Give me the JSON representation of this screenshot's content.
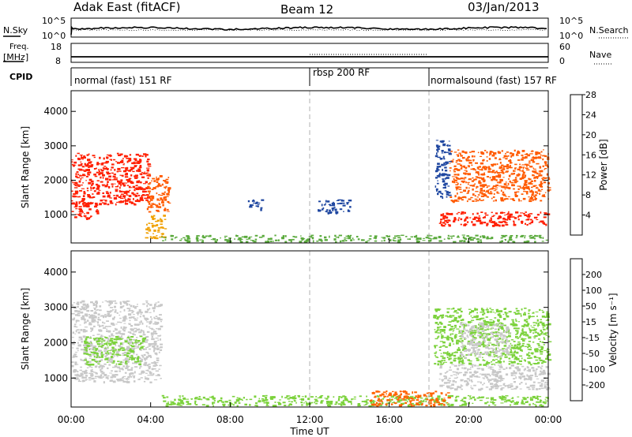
{
  "header": {
    "station": "Adak East (fitACF)",
    "beam": "Beam 12",
    "date": "03/Jan/2013"
  },
  "noise_panel": {
    "left_label": "N.Sky",
    "right_label": "N.Search",
    "left_ticks": [
      "10^5",
      "10^0"
    ],
    "right_ticks": [
      "10^5",
      "10^0"
    ]
  },
  "freq_panel": {
    "left_label_1": "Freq.",
    "left_label_2": "[MHz]",
    "right_label": "Nave",
    "left_ticks": [
      "18",
      "8"
    ],
    "right_ticks": [
      "60",
      "0"
    ]
  },
  "cpid": {
    "label": "CPID",
    "segments": [
      {
        "name": "normal (fast) 151 RF",
        "start": 0,
        "end": 12
      },
      {
        "name": "rbsp 200 RF",
        "start": 12,
        "end": 18
      },
      {
        "name": "normalsound (fast) 157 RF",
        "start": 18,
        "end": 24
      }
    ]
  },
  "power_colorbar": {
    "label": "Power [dB]",
    "ticks": [
      "4",
      "8",
      "12",
      "16",
      "20",
      "24",
      "28"
    ],
    "colors": [
      "#1e1ee6",
      "#1e46a0",
      "#2e7d5a",
      "#5aaa3c",
      "#f0a000",
      "#ff5a00",
      "#ff1e00"
    ]
  },
  "velocity_colorbar": {
    "label": "Velocity [m s⁻¹]",
    "ticks": [
      "200",
      "100",
      "50",
      "15",
      "-15",
      "-50",
      "-100",
      "-200"
    ],
    "colors": [
      "#1e3cc8",
      "#2e7d3c",
      "#4caf28",
      "#7cd23c",
      "#c8c8c8",
      "#f5a000",
      "#ff6400",
      "#ff1e00"
    ]
  },
  "chart_data": {
    "type": "heatmap",
    "x_axis": {
      "label": "Time UT",
      "ticks": [
        "00:00",
        "04:00",
        "08:00",
        "12:00",
        "16:00",
        "20:00",
        "00:00"
      ],
      "range_hours": [
        0,
        24
      ]
    },
    "y_axis": {
      "label": "Slant Range [km]",
      "ticks": [
        "1000",
        "2000",
        "3000",
        "4000"
      ],
      "range_km": [
        180,
        4600
      ]
    },
    "dashed_markers_hours": [
      12,
      18
    ],
    "power_regions": [
      {
        "t": [
          0.0,
          3.9
        ],
        "r": [
          1300,
          2800
        ],
        "color": "#ff1e00"
      },
      {
        "t": [
          0.0,
          1.3
        ],
        "r": [
          900,
          1400
        ],
        "color": "#ff1e00"
      },
      {
        "t": [
          3.8,
          4.9
        ],
        "r": [
          1100,
          2200
        ],
        "color": "#ff5a00"
      },
      {
        "t": [
          3.7,
          4.7
        ],
        "r": [
          300,
          1000
        ],
        "color": "#f0a000"
      },
      {
        "t": [
          4.5,
          24.0
        ],
        "r": [
          230,
          420
        ],
        "color": "#5aaa3c"
      },
      {
        "t": [
          8.8,
          9.6
        ],
        "r": [
          1150,
          1450
        ],
        "color": "#1e46a0"
      },
      {
        "t": [
          12.4,
          14.0
        ],
        "r": [
          1050,
          1450
        ],
        "color": "#1e46a0"
      },
      {
        "t": [
          18.5,
          24.0
        ],
        "r": [
          700,
          1100
        ],
        "color": "#ff1e00"
      },
      {
        "t": [
          19.0,
          24.0
        ],
        "r": [
          1400,
          2900
        ],
        "color": "#ff5a00"
      },
      {
        "t": [
          18.3,
          19.0
        ],
        "r": [
          1500,
          3200
        ],
        "color": "#1e46a0"
      }
    ],
    "velocity_regions": [
      {
        "t": [
          0.0,
          4.5
        ],
        "r": [
          900,
          3200
        ],
        "color": "#c8c8c8"
      },
      {
        "t": [
          0.6,
          3.6
        ],
        "r": [
          1400,
          2200
        ],
        "color": "#7cd23c"
      },
      {
        "t": [
          4.5,
          24.0
        ],
        "r": [
          230,
          520
        ],
        "color": "#7cd23c"
      },
      {
        "t": [
          15.0,
          19.0
        ],
        "r": [
          230,
          650
        ],
        "color": "#ff6400"
      },
      {
        "t": [
          18.5,
          24.0
        ],
        "r": [
          700,
          1400
        ],
        "color": "#c8c8c8"
      },
      {
        "t": [
          18.2,
          24.0
        ],
        "r": [
          1400,
          3000
        ],
        "color": "#7cd23c"
      },
      {
        "t": [
          19.5,
          22.0
        ],
        "r": [
          1600,
          2600
        ],
        "color": "#c8c8c8"
      }
    ]
  }
}
